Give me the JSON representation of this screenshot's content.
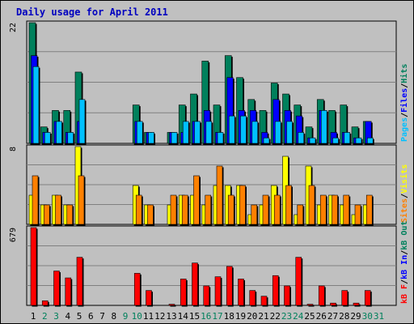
{
  "chart_data": {
    "type": "bar",
    "title": "Daily usage for April 2011",
    "days": [
      "1",
      "2",
      "3",
      "4",
      "5",
      "6",
      "7",
      "8",
      "9",
      "10",
      "11",
      "12",
      "13",
      "14",
      "15",
      "16",
      "17",
      "18",
      "19",
      "20",
      "21",
      "22",
      "23",
      "24",
      "25",
      "26",
      "27",
      "28",
      "29",
      "30",
      "31"
    ],
    "weekend_days": [
      "2",
      "3",
      "9",
      "10",
      "16",
      "17",
      "23",
      "24",
      "30",
      "31"
    ],
    "colors": {
      "background": "#c0c0c0",
      "title": "#0000c0",
      "hits": "#00805c",
      "files": "#0000ff",
      "pages": "#00c0ff",
      "visits": "#ffff00",
      "sites": "#ff8000",
      "kb_f": "#ff0000",
      "kb_in": "#0000ff",
      "kb_out": "#00805c",
      "weekend_label": "#00805c",
      "weekday_label": "#000000"
    },
    "panels": [
      {
        "name": "top",
        "max_label": "22",
        "max": 22,
        "legend": [
          {
            "text": "Pages",
            "color": "#00c0ff"
          },
          {
            "text": "/",
            "color": "#000000"
          },
          {
            "text": "Files",
            "color": "#0000ff"
          },
          {
            "text": "/",
            "color": "#000000"
          },
          {
            "text": "Hits",
            "color": "#00805c"
          }
        ],
        "series": [
          {
            "name": "Hits",
            "color": "#00805c",
            "values": [
              22,
              3,
              6,
              6,
              13,
              0,
              0,
              0,
              0,
              7,
              2,
              0,
              2,
              7,
              9,
              15,
              7,
              16,
              12,
              8,
              6,
              11,
              9,
              7,
              3,
              8,
              6,
              7,
              3,
              4,
              0
            ]
          },
          {
            "name": "Files",
            "color": "#0000ff",
            "values": [
              16,
              2,
              4,
              2,
              4,
              0,
              0,
              0,
              0,
              4,
              2,
              0,
              2,
              2,
              4,
              6,
              2,
              12,
              6,
              6,
              2,
              8,
              6,
              5,
              1,
              6,
              2,
              2,
              1,
              4,
              0
            ]
          },
          {
            "name": "Pages",
            "color": "#00c0ff",
            "values": [
              14,
              2,
              4,
              2,
              8,
              0,
              0,
              0,
              0,
              4,
              2,
              0,
              2,
              4,
              4,
              4,
              2,
              5,
              5,
              4,
              1,
              4,
              4,
              2,
              1,
              6,
              1,
              2,
              1,
              1,
              0
            ]
          }
        ]
      },
      {
        "name": "middle",
        "max_label": "8",
        "max": 8,
        "legend": [
          {
            "text": "Sites",
            "color": "#ff8000"
          },
          {
            "text": "/",
            "color": "#000000"
          },
          {
            "text": "Visits",
            "color": "#ffff00"
          }
        ],
        "series": [
          {
            "name": "Visits",
            "color": "#ffff00",
            "values": [
              3,
              2,
              3,
              2,
              8,
              0,
              0,
              0,
              0,
              4,
              2,
              0,
              2,
              3,
              3,
              2,
              4,
              4,
              4,
              1,
              2,
              4,
              7,
              1,
              6,
              2,
              3,
              2,
              1,
              2,
              0
            ]
          },
          {
            "name": "Sites",
            "color": "#ff8000",
            "values": [
              5,
              2,
              3,
              2,
              5,
              0,
              0,
              0,
              0,
              3,
              2,
              0,
              3,
              3,
              5,
              3,
              6,
              3,
              4,
              2,
              3,
              3,
              4,
              2,
              4,
              3,
              3,
              3,
              2,
              3,
              0
            ]
          }
        ]
      },
      {
        "name": "bottom",
        "max_label": "679",
        "max": 679,
        "legend": [
          {
            "text": "kB F",
            "color": "#ff0000"
          },
          {
            "text": "/",
            "color": "#000000"
          },
          {
            "text": "kB In",
            "color": "#0000ff"
          },
          {
            "text": "/",
            "color": "#000000"
          },
          {
            "text": "kB Out",
            "color": "#00805c"
          }
        ],
        "series": [
          {
            "name": "kB F",
            "color": "#ff0000",
            "values": [
              679,
              40,
              300,
              240,
              420,
              0,
              0,
              0,
              0,
              280,
              130,
              0,
              10,
              230,
              370,
              170,
              250,
              340,
              230,
              130,
              80,
              260,
              170,
              420,
              10,
              170,
              20,
              130,
              20,
              130,
              0
            ]
          }
        ]
      }
    ]
  }
}
